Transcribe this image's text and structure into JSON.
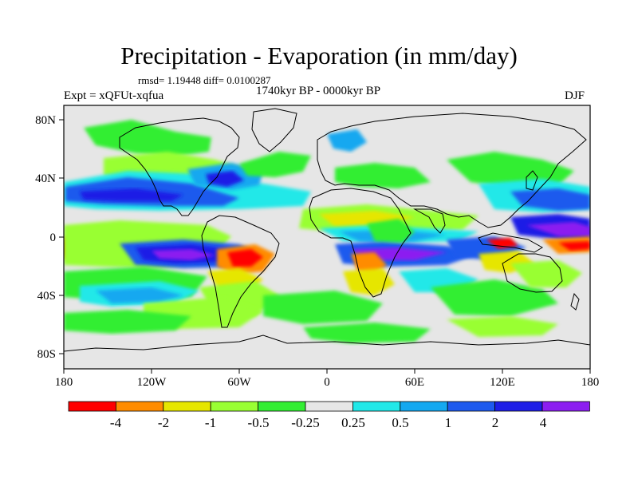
{
  "title": "Precipitation - Evaporation (in mm/day)",
  "stats": "rmsd= 1.19448 diff= 0.0100287",
  "period": "1740kyr BP - 0000kyr BP",
  "experiment": "Expt = xQFUt-xqfua",
  "season": "DJF",
  "axes": {
    "lon_ticks": [
      "180",
      "120W",
      "60W",
      "0",
      "60E",
      "120E",
      "180"
    ],
    "lat_ticks": [
      "80N",
      "40N",
      "0",
      "40S",
      "80S"
    ]
  },
  "colorbar": {
    "labels": [
      "-4",
      "-2",
      "-1",
      "-0.5",
      "-0.25",
      "0.25",
      "0.5",
      "1",
      "2",
      "4"
    ],
    "colors": [
      "#ff0000",
      "#ff8c00",
      "#e6e600",
      "#99ff33",
      "#33ee33",
      "#e6e6e6",
      "#22e8e8",
      "#14a8f0",
      "#1e5aee",
      "#1e1ee6",
      "#8c1ef0"
    ]
  },
  "palette": {
    "neutral": "#e6e6e6",
    "cyan": "#22e8e8",
    "lightblue": "#14a8f0",
    "blue": "#1e5aee",
    "darkblue": "#1e1ee6",
    "purple": "#8c1ef0",
    "green": "#33ee33",
    "lime": "#99ff33",
    "yellow": "#e6e600",
    "orange": "#ff8c00",
    "red": "#ff0000",
    "coast": "#000000"
  }
}
